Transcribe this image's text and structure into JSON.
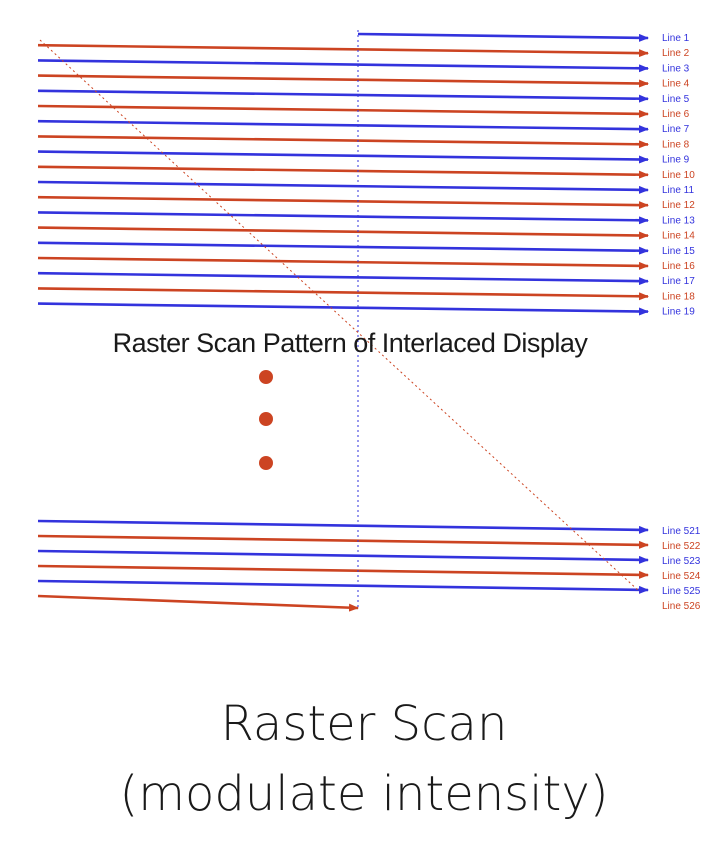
{
  "figure": {
    "title": "Raster Scan Pattern of Interlaced Display",
    "colors": {
      "odd_field": "#3333dd",
      "even_field": "#cc4422",
      "dots": "#cc4422"
    },
    "top_group": {
      "labels": [
        "Line 1",
        "Line 2",
        "Line 3",
        "Line 4",
        "Line 5",
        "Line 6",
        "Line 7",
        "Line 8",
        "Line 9",
        "Line 10",
        "Line 11",
        "Line 12",
        "Line 13",
        "Line 14",
        "Line 15",
        "Line 16",
        "Line 17",
        "Line 18",
        "Line 19"
      ]
    },
    "bottom_group": {
      "labels": [
        "Line 521",
        "Line 522",
        "Line 523",
        "Line 524",
        "Line 525",
        "Line 526"
      ]
    }
  },
  "caption": {
    "line1": "Raster Scan",
    "line2": "(modulate intensity)"
  }
}
